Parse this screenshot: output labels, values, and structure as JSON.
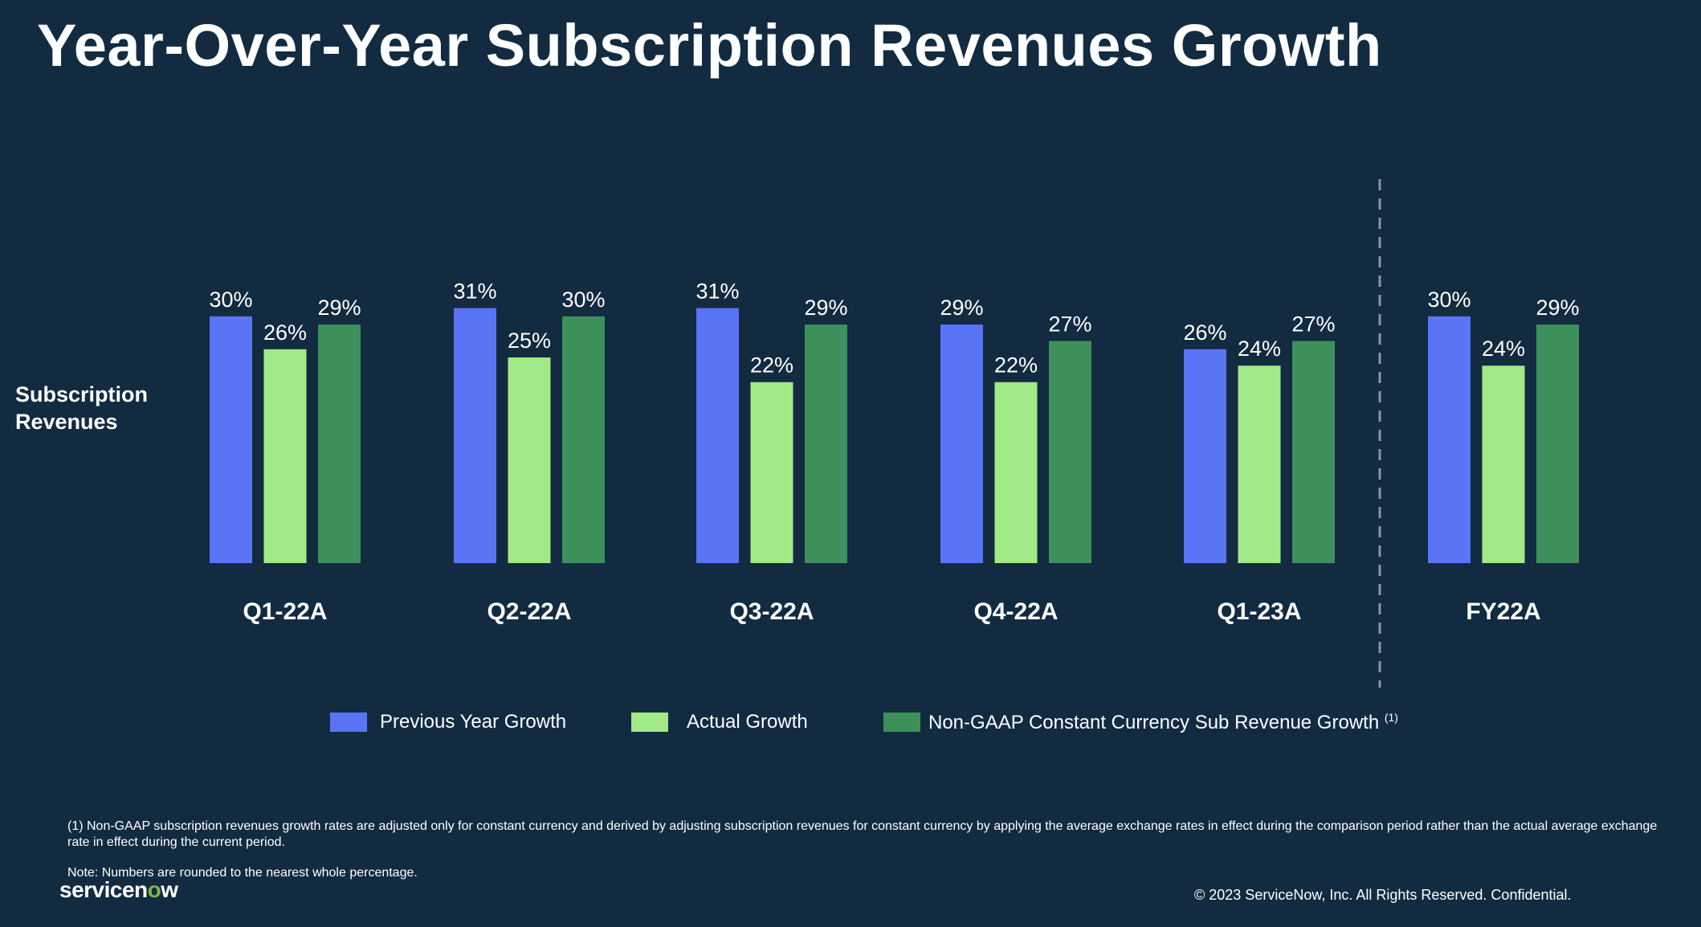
{
  "title": "Year-Over-Year Subscription Revenues Growth",
  "y_label_lines": [
    "Subscription",
    "Revenues"
  ],
  "chart_data": {
    "type": "bar",
    "categories": [
      "Q1-22A",
      "Q2-22A",
      "Q3-22A",
      "Q4-22A",
      "Q1-23A",
      "FY22A"
    ],
    "series": [
      {
        "name": "Previous Year Growth",
        "color": "#5a74f6",
        "values": [
          30,
          31,
          31,
          29,
          26,
          30
        ]
      },
      {
        "name": "Actual Growth",
        "color": "#a2e987",
        "values": [
          26,
          25,
          22,
          22,
          24,
          24
        ]
      },
      {
        "name": "Non-GAAP Constant Currency Sub Revenue Growth",
        "name_superscript": "(1)",
        "color": "#3e905b",
        "values": [
          29,
          30,
          29,
          27,
          27,
          29
        ]
      }
    ],
    "value_suffix": "%",
    "ylabel": "Subscription Revenues",
    "ylim": [
      0,
      31
    ],
    "grid": false,
    "legend_position": "bottom",
    "separator_before_category": "FY22A"
  },
  "footnotes": {
    "note1": "(1) Non-GAAP subscription revenues growth rates are adjusted only for constant currency and derived by adjusting subscription revenues for constant currency by applying the average exchange rates in effect during the comparison period rather than the actual average exchange rate in effect during the current period.",
    "note2": "Note: Numbers are rounded to the nearest whole percentage."
  },
  "logo": {
    "text_a": "servicen",
    "text_o": "o",
    "text_b": "w"
  },
  "copyright": "© 2023 ServiceNow, Inc. All Rights Reserved. Confidential."
}
